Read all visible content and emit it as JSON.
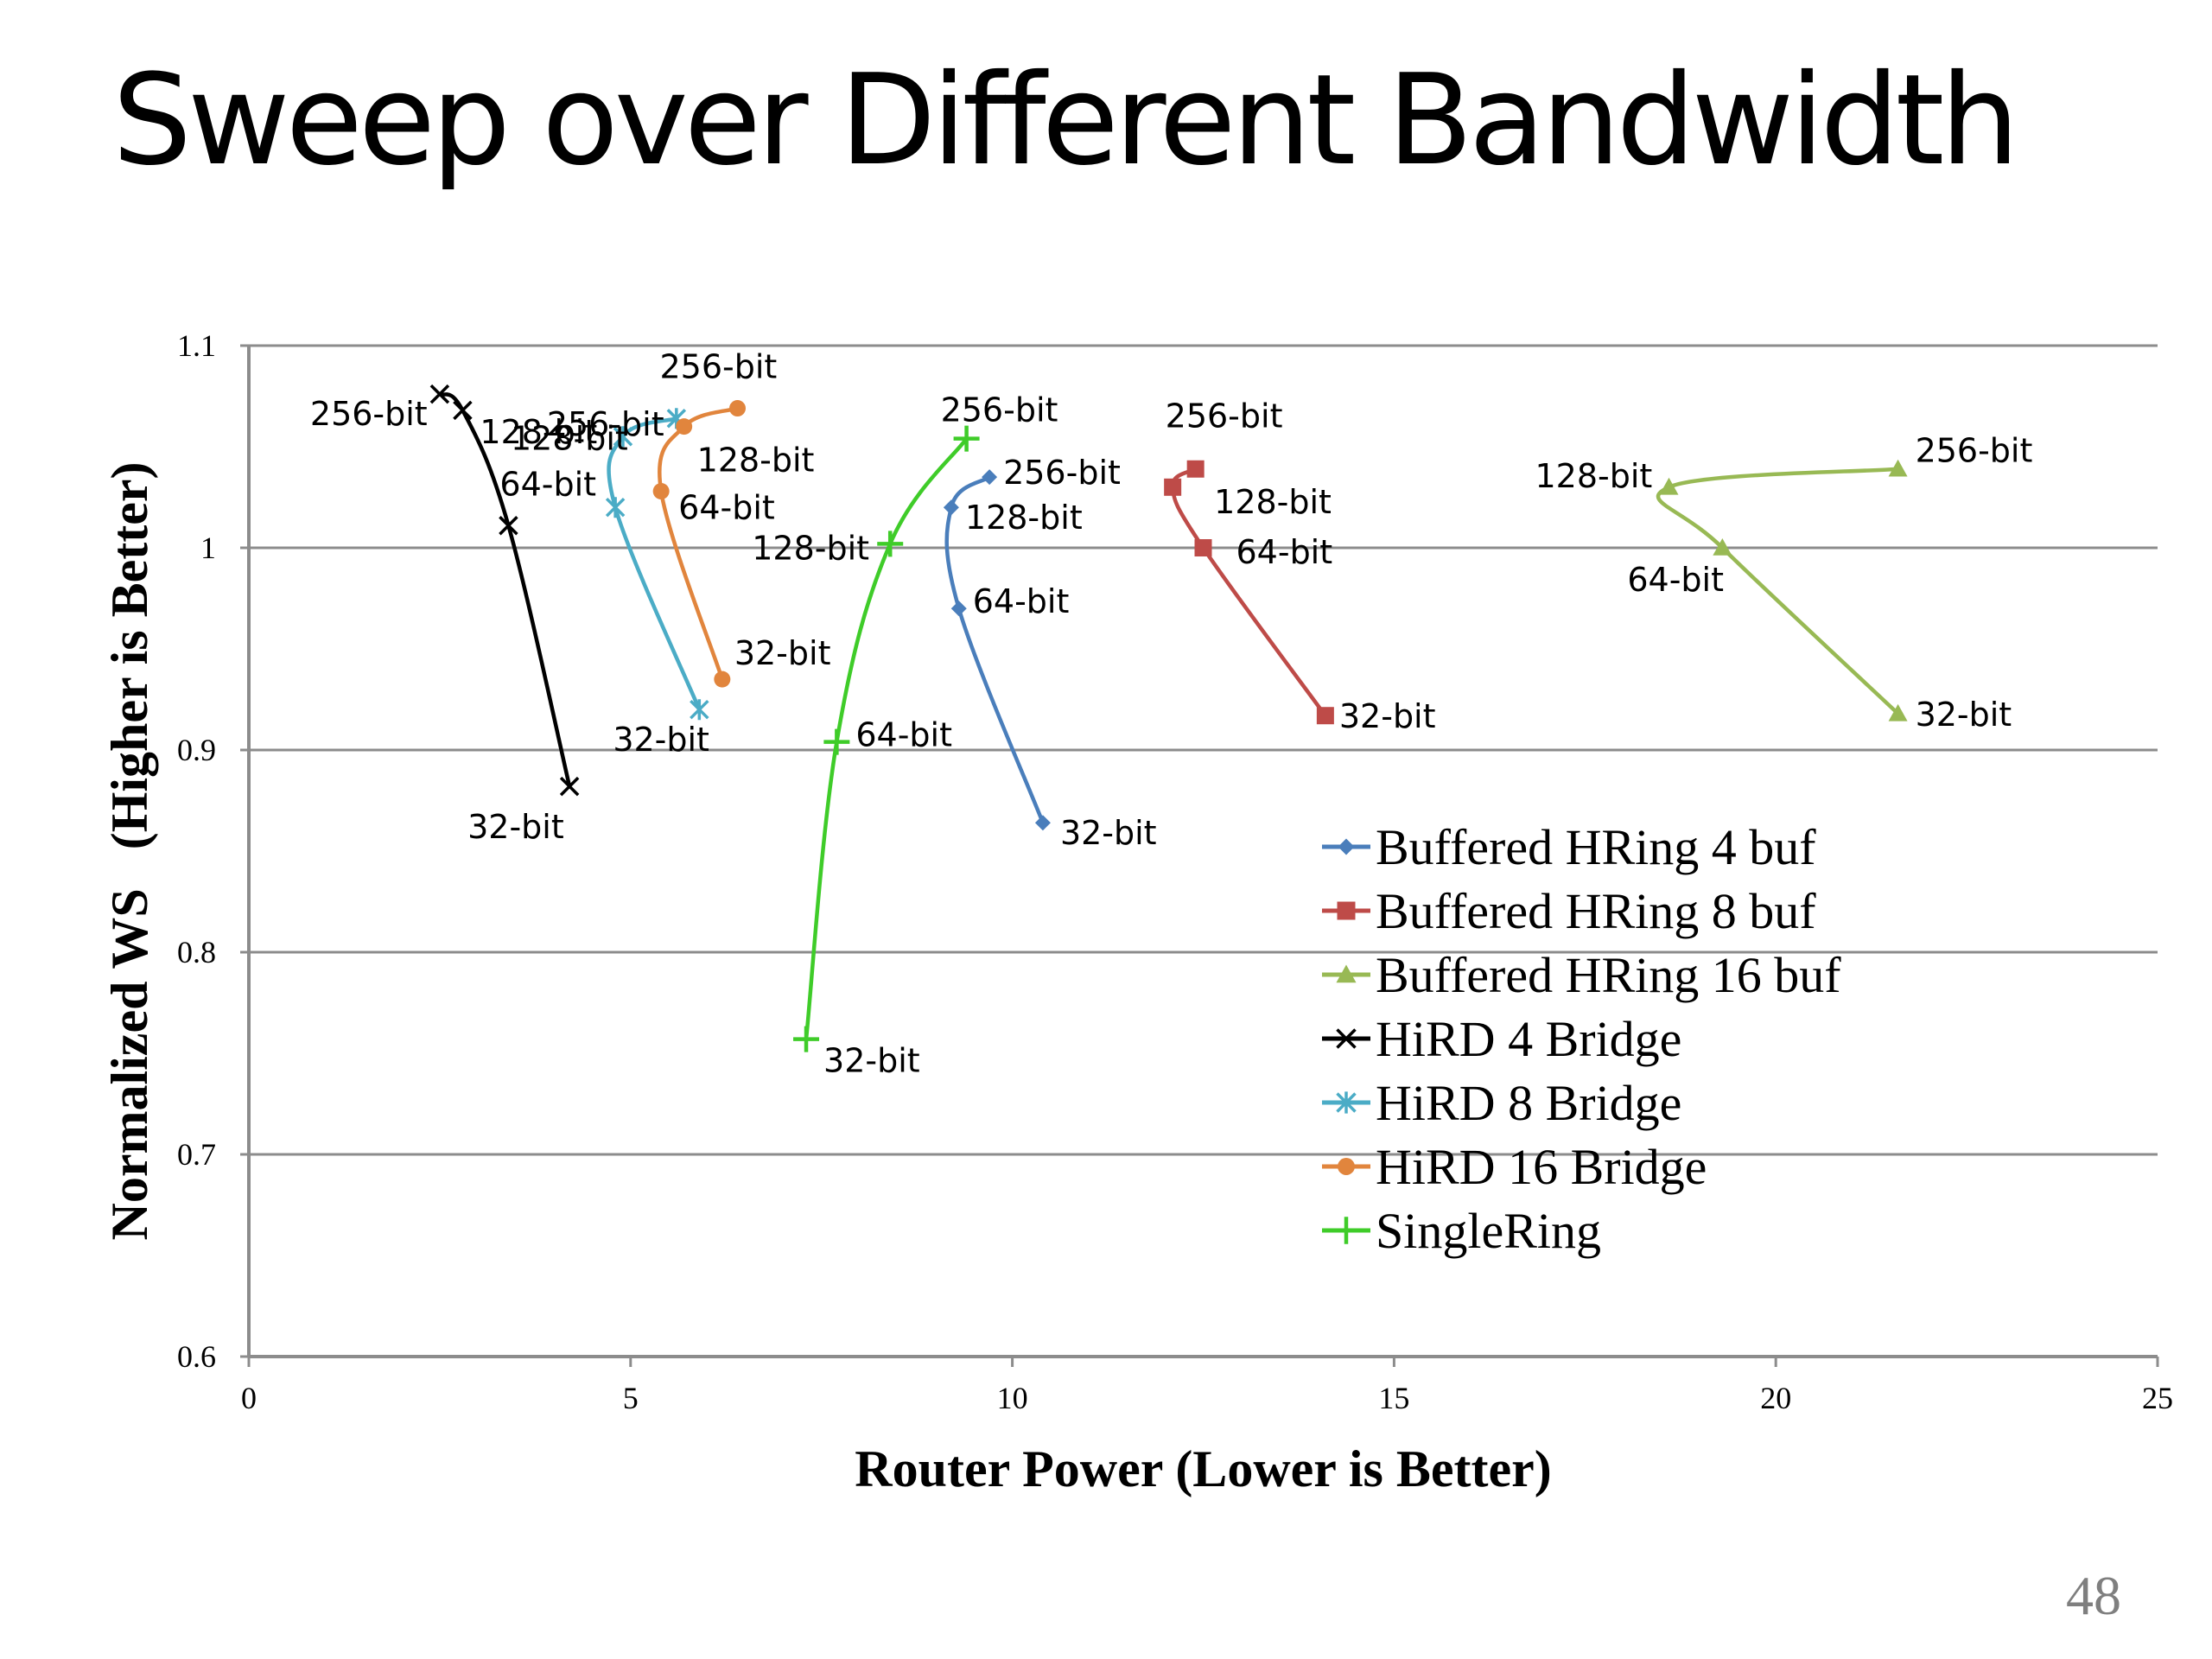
{
  "slide": {
    "title": "Sweep over Different Bandwidth",
    "page_number": "48"
  },
  "chart_data": {
    "type": "line",
    "xlabel": "Router Power (Lower is Better)",
    "ylabel": "Normalized WS   (Higher is Better)",
    "xlim": [
      0,
      25
    ],
    "ylim": [
      0.6,
      1.1
    ],
    "x_ticks": [
      "0",
      "5",
      "10",
      "15",
      "20",
      "25"
    ],
    "y_ticks": [
      "0.6",
      "0.7",
      "0.8",
      "0.9",
      "1",
      "1.1"
    ],
    "grid": "horizontal",
    "legend_position": "lower-right",
    "series": [
      {
        "name": "Buffered HRing 4 buf",
        "color": "#4a7ebb",
        "marker": "diamond",
        "points": [
          {
            "x": 9.7,
            "y": 1.035,
            "label": "256-bit"
          },
          {
            "x": 9.2,
            "y": 1.02,
            "label": "128-bit"
          },
          {
            "x": 9.3,
            "y": 0.97,
            "label": "64-bit"
          },
          {
            "x": 10.4,
            "y": 0.864,
            "label": "32-bit"
          }
        ]
      },
      {
        "name": "Buffered HRing 8 buf",
        "color": "#be4b48",
        "marker": "square",
        "points": [
          {
            "x": 12.4,
            "y": 1.039,
            "label": "256-bit"
          },
          {
            "x": 12.1,
            "y": 1.03,
            "label": "128-bit"
          },
          {
            "x": 12.5,
            "y": 1.0,
            "label": "64-bit"
          },
          {
            "x": 14.1,
            "y": 0.917,
            "label": "32-bit"
          }
        ]
      },
      {
        "name": "Buffered HRing 16 buf",
        "color": "#98b954",
        "marker": "triangle",
        "points": [
          {
            "x": 21.6,
            "y": 1.039,
            "label": "256-bit"
          },
          {
            "x": 18.6,
            "y": 1.03,
            "label": "128-bit"
          },
          {
            "x": 19.3,
            "y": 1.0,
            "label": "64-bit"
          },
          {
            "x": 21.6,
            "y": 0.918,
            "label": "32-bit"
          }
        ]
      },
      {
        "name": "HiRD 4 Bridge",
        "color": "#000000",
        "marker": "x",
        "points": [
          {
            "x": 2.5,
            "y": 1.076,
            "label": "256-bit"
          },
          {
            "x": 2.8,
            "y": 1.068,
            "label": "128-bit"
          },
          {
            "x": 3.4,
            "y": 1.011,
            "label": "64-bit"
          },
          {
            "x": 4.2,
            "y": 0.882,
            "label": "32-bit"
          }
        ]
      },
      {
        "name": "HiRD 8 Bridge",
        "color": "#4bacc6",
        "marker": "star",
        "points": [
          {
            "x": 5.6,
            "y": 1.064,
            "label": "256-bit"
          },
          {
            "x": 4.9,
            "y": 1.055,
            "label": "128-bit"
          },
          {
            "x": 4.8,
            "y": 1.02,
            "label": "64-bit"
          },
          {
            "x": 5.9,
            "y": 0.92,
            "label": "32-bit"
          }
        ]
      },
      {
        "name": "HiRD 16 Bridge",
        "color": "#e1853d",
        "marker": "circle",
        "points": [
          {
            "x": 6.4,
            "y": 1.069,
            "label": "256-bit"
          },
          {
            "x": 5.7,
            "y": 1.06,
            "label": "128-bit"
          },
          {
            "x": 5.4,
            "y": 1.028,
            "label": "64-bit"
          },
          {
            "x": 6.2,
            "y": 0.935,
            "label": "32-bit"
          }
        ]
      },
      {
        "name": "SingleRing",
        "color": "#3fcc29",
        "marker": "plus",
        "points": [
          {
            "x": 9.4,
            "y": 1.054,
            "label": "256-bit"
          },
          {
            "x": 8.4,
            "y": 1.002,
            "label": "128-bit"
          },
          {
            "x": 7.7,
            "y": 0.904,
            "label": "64-bit"
          },
          {
            "x": 7.3,
            "y": 0.757,
            "label": "32-bit"
          }
        ]
      }
    ]
  }
}
